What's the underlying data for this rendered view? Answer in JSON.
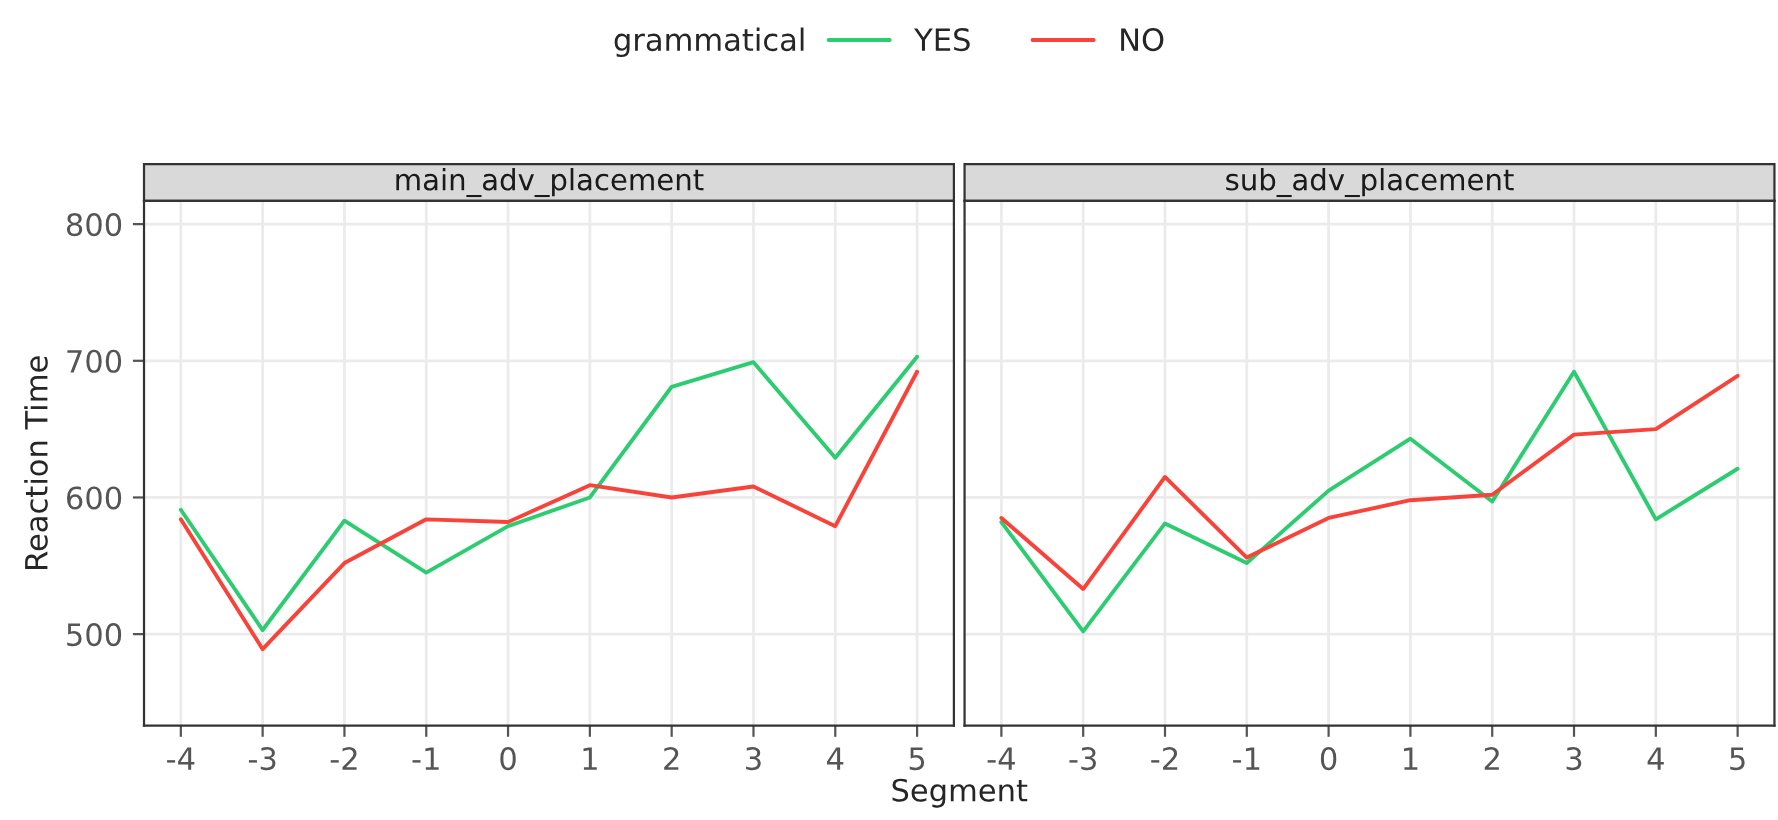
{
  "chart_data": [
    {
      "type": "line",
      "title": "main_adv_placement",
      "xlabel": "Segment",
      "ylabel": "Reaction Time",
      "legend_title": "grammatical",
      "legend": "top",
      "grid": true,
      "x": [
        -4,
        -3,
        -2,
        -1,
        0,
        1,
        2,
        3,
        4,
        5
      ],
      "xlim": [
        -4.45,
        5.45
      ],
      "xticks": [
        -4,
        -3,
        -2,
        -1,
        0,
        1,
        2,
        3,
        4,
        5
      ],
      "ylim": [
        433,
        817
      ],
      "yticks": [
        500,
        600,
        700,
        800
      ],
      "series": [
        {
          "name": "YES",
          "color": "#2ecc71",
          "values": [
            591,
            503,
            583,
            545,
            579,
            600,
            681,
            699,
            629,
            703
          ]
        },
        {
          "name": "NO",
          "color": "#f8433a",
          "values": [
            584,
            489,
            552,
            584,
            582,
            609,
            600,
            608,
            579,
            692
          ]
        }
      ]
    },
    {
      "type": "line",
      "title": "sub_adv_placement",
      "grid": true,
      "tick_labels": "x",
      "x": [
        -4,
        -3,
        -2,
        -1,
        0,
        1,
        2,
        3,
        4,
        5
      ],
      "xlim": [
        -4.45,
        5.45
      ],
      "xticks": [
        -4,
        -3,
        -2,
        -1,
        0,
        1,
        2,
        3,
        4,
        5
      ],
      "ylim": [
        433,
        817
      ],
      "yticks": [
        500,
        600,
        700,
        800
      ],
      "series": [
        {
          "color": "#2ecc71",
          "values": [
            582,
            502,
            581,
            552,
            605,
            643,
            597,
            692,
            584,
            621
          ]
        },
        {
          "color": "#f8433a",
          "values": [
            585,
            533,
            615,
            556,
            585,
            598,
            602,
            646,
            650,
            689
          ]
        }
      ]
    }
  ]
}
